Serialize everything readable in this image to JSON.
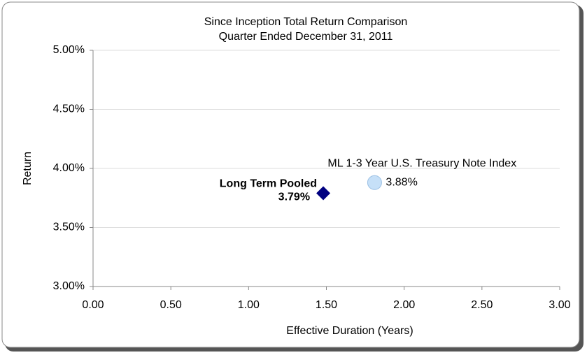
{
  "chart_data": {
    "type": "scatter",
    "title": "Since Inception Total Return Comparison",
    "subtitle": "Quarter Ended December 31, 2011",
    "xlabel": "Effective Duration (Years)",
    "ylabel": "Return",
    "xlim": [
      0,
      3
    ],
    "xticks": [
      {
        "value": 0,
        "label": "0.00"
      },
      {
        "value": 0.5,
        "label": "0.50"
      },
      {
        "value": 1,
        "label": "1.00"
      },
      {
        "value": 1.5,
        "label": "1.50"
      },
      {
        "value": 2,
        "label": "2.00"
      },
      {
        "value": 2.5,
        "label": "2.50"
      },
      {
        "value": 3,
        "label": "3.00"
      }
    ],
    "ylim": [
      3,
      5
    ],
    "yticks": [
      {
        "value": 3,
        "label": "3.00%"
      },
      {
        "value": 3.5,
        "label": "3.50%"
      },
      {
        "value": 4,
        "label": "4.00%"
      },
      {
        "value": 4.5,
        "label": "4.50%"
      },
      {
        "value": 5,
        "label": "5.00%"
      }
    ],
    "grid": true,
    "series": [
      {
        "name": "Long Term Pooled",
        "color": "#000080",
        "marker": "diamond",
        "x": [
          1.48
        ],
        "values": [
          3.79
        ],
        "value_labels": [
          "3.79%"
        ]
      },
      {
        "name": "ML 1-3 Year U.S. Treasury Note Index",
        "color": "#c6e0f8",
        "marker": "circle",
        "x": [
          1.81
        ],
        "values": [
          3.88
        ],
        "value_labels": [
          "3.88%"
        ]
      }
    ]
  }
}
